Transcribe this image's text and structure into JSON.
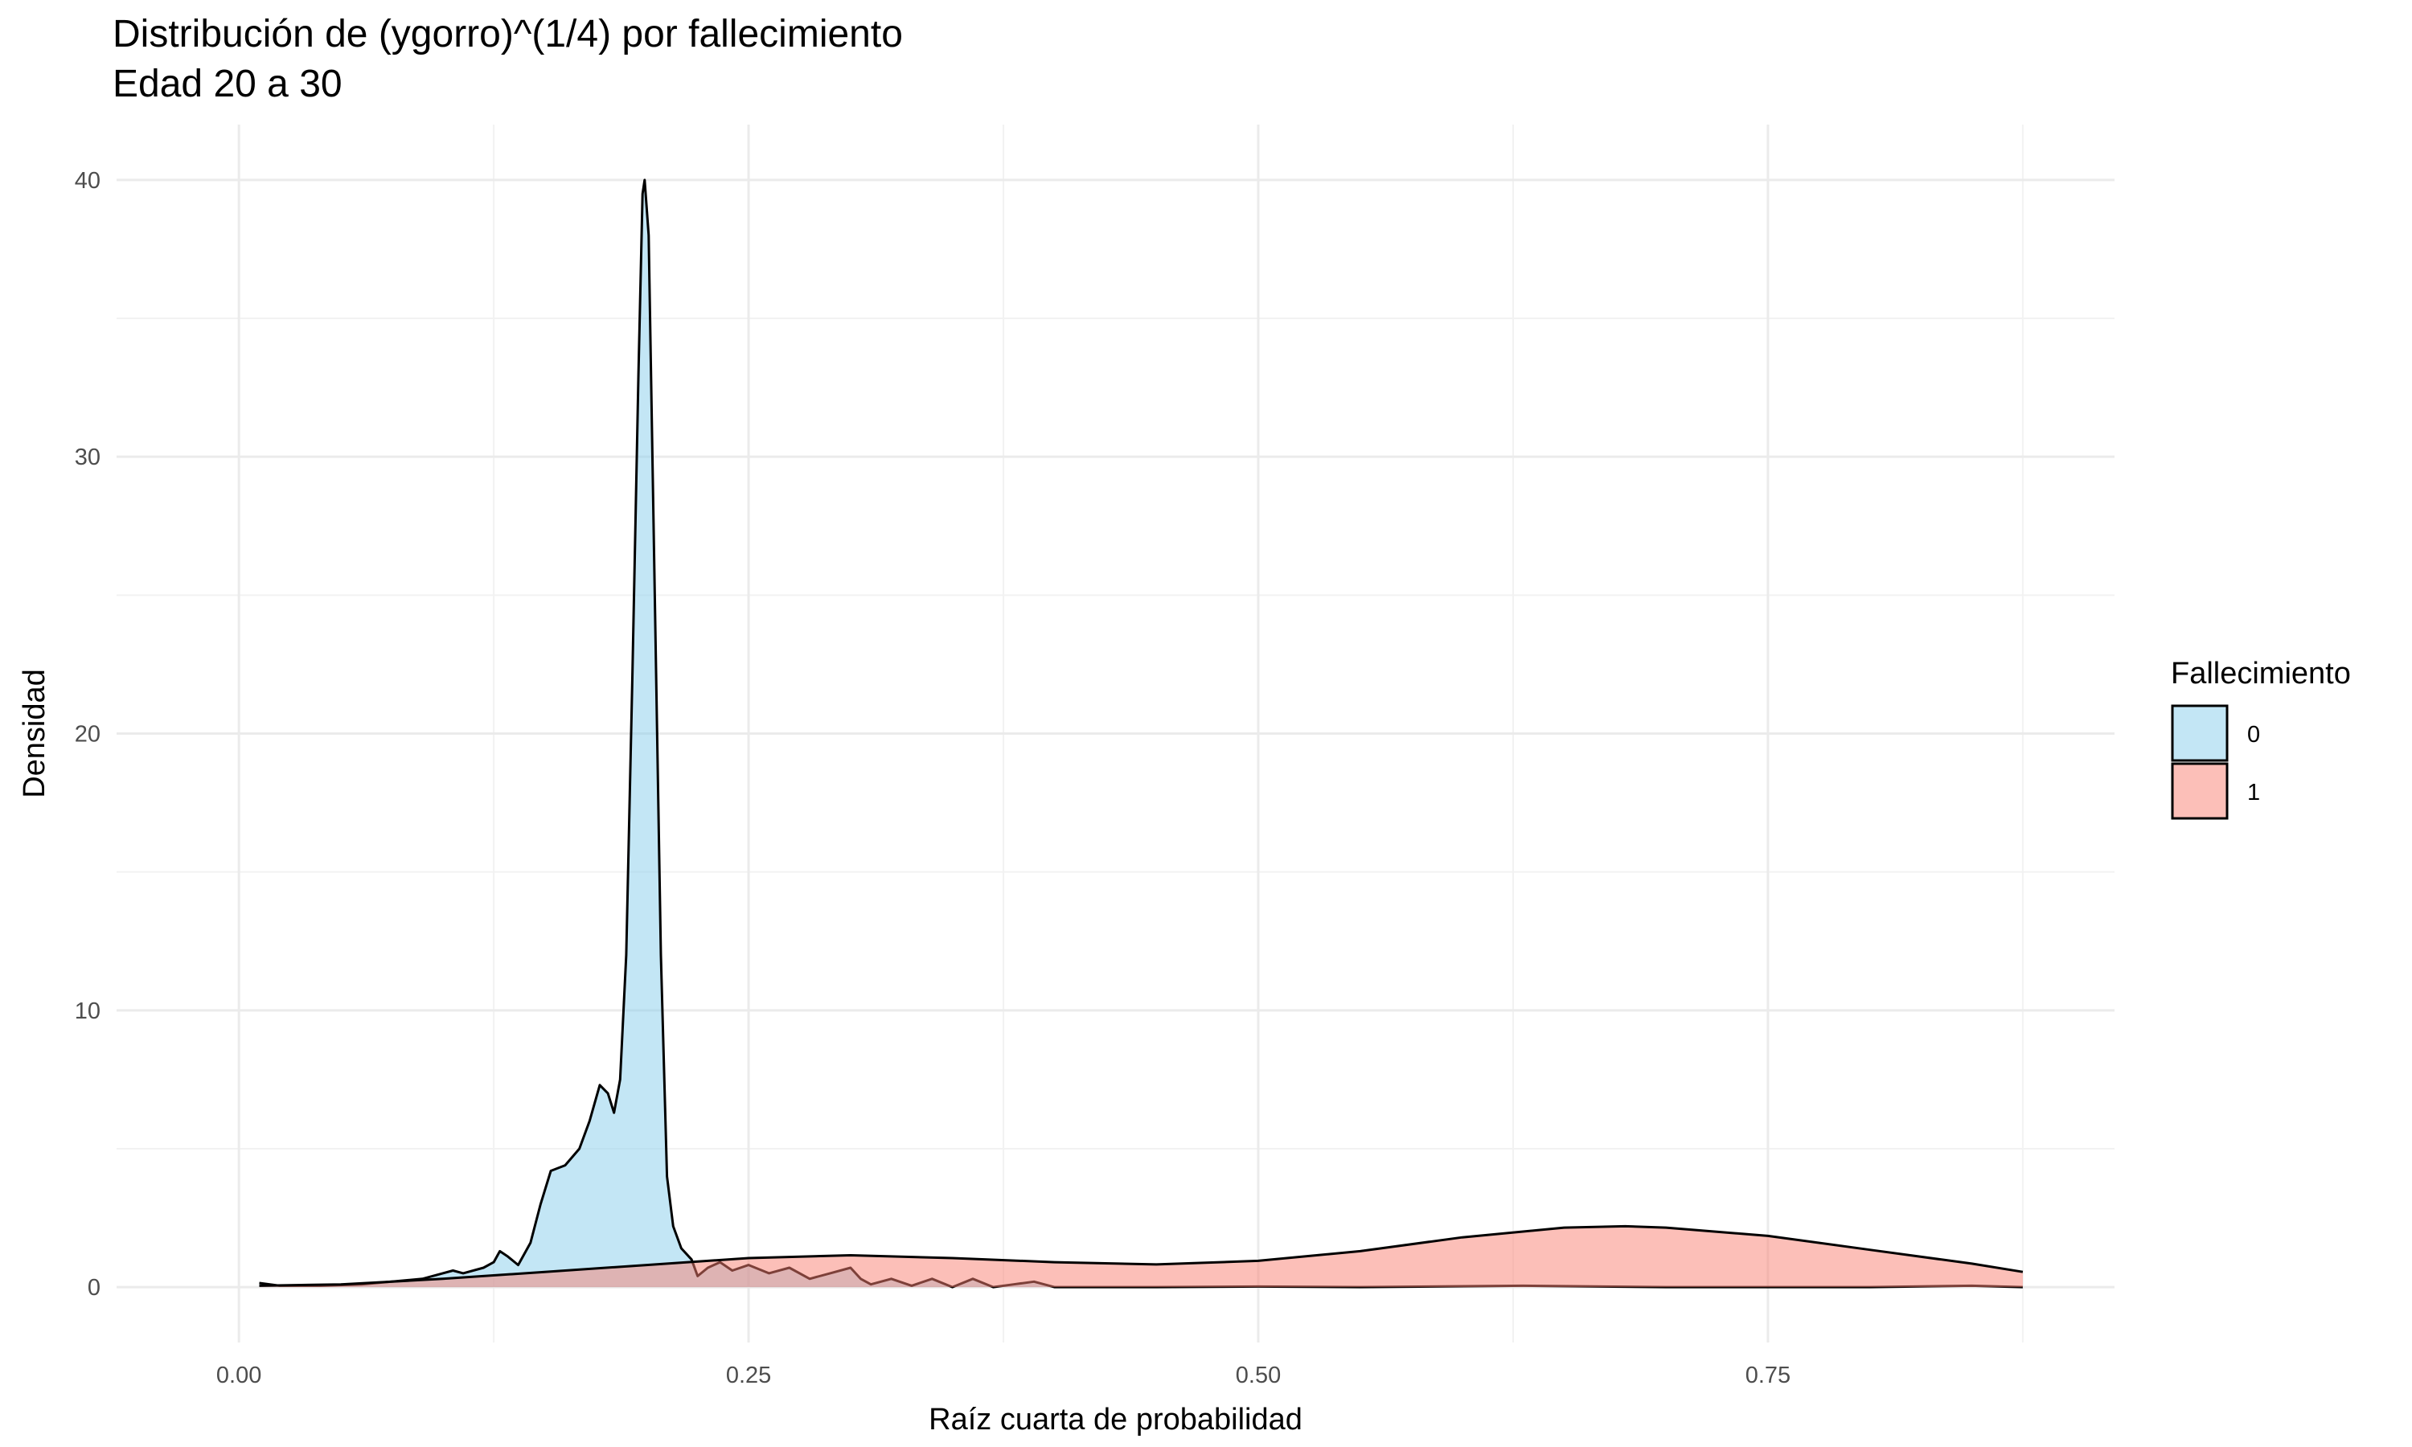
{
  "chart_data": {
    "type": "area",
    "title": "Distribución de (ygorro)^(1/4) por fallecimiento",
    "subtitle": "Edad 20 a 30",
    "xlabel": "Raíz cuarta de probabilidad",
    "ylabel": "Densidad",
    "xlim": [
      -0.06,
      0.92
    ],
    "ylim": [
      -2.0,
      42.0
    ],
    "x_ticks": [
      0.0,
      0.25,
      0.5,
      0.75
    ],
    "x_tick_labels": [
      "0.00",
      "0.25",
      "0.50",
      "0.75"
    ],
    "y_ticks": [
      0,
      10,
      20,
      30,
      40
    ],
    "y_tick_labels": [
      "0",
      "10",
      "20",
      "30",
      "40"
    ],
    "grid": true,
    "legend": {
      "title": "Fallecimiento",
      "placement": "right"
    },
    "series": [
      {
        "name": "0",
        "fill": "#87ceeb",
        "fill_opacity": 0.5,
        "points": [
          [
            0.01,
            0.15
          ],
          [
            0.02,
            0.05
          ],
          [
            0.04,
            0.05
          ],
          [
            0.06,
            0.1
          ],
          [
            0.075,
            0.2
          ],
          [
            0.09,
            0.3
          ],
          [
            0.1,
            0.5
          ],
          [
            0.105,
            0.6
          ],
          [
            0.11,
            0.5
          ],
          [
            0.12,
            0.7
          ],
          [
            0.125,
            0.9
          ],
          [
            0.128,
            1.3
          ],
          [
            0.132,
            1.1
          ],
          [
            0.137,
            0.8
          ],
          [
            0.143,
            1.6
          ],
          [
            0.148,
            3.0
          ],
          [
            0.153,
            4.2
          ],
          [
            0.16,
            4.4
          ],
          [
            0.167,
            5.0
          ],
          [
            0.172,
            6.0
          ],
          [
            0.177,
            7.3
          ],
          [
            0.181,
            7.0
          ],
          [
            0.184,
            6.3
          ],
          [
            0.187,
            7.5
          ],
          [
            0.19,
            12.0
          ],
          [
            0.193,
            22.0
          ],
          [
            0.196,
            33.0
          ],
          [
            0.198,
            39.5
          ],
          [
            0.199,
            40.0
          ],
          [
            0.201,
            38.0
          ],
          [
            0.204,
            25.0
          ],
          [
            0.207,
            12.0
          ],
          [
            0.21,
            4.0
          ],
          [
            0.213,
            2.2
          ],
          [
            0.217,
            1.4
          ],
          [
            0.222,
            1.0
          ],
          [
            0.225,
            0.4
          ],
          [
            0.23,
            0.7
          ],
          [
            0.236,
            0.9
          ],
          [
            0.242,
            0.6
          ],
          [
            0.25,
            0.8
          ],
          [
            0.26,
            0.5
          ],
          [
            0.27,
            0.7
          ],
          [
            0.28,
            0.3
          ],
          [
            0.29,
            0.5
          ],
          [
            0.3,
            0.7
          ],
          [
            0.305,
            0.3
          ],
          [
            0.31,
            0.1
          ],
          [
            0.32,
            0.3
          ],
          [
            0.33,
            0.05
          ],
          [
            0.34,
            0.3
          ],
          [
            0.35,
            0.0
          ],
          [
            0.36,
            0.3
          ],
          [
            0.37,
            0.0
          ],
          [
            0.38,
            0.1
          ],
          [
            0.39,
            0.2
          ],
          [
            0.4,
            0.0
          ],
          [
            0.45,
            0.0
          ],
          [
            0.5,
            0.02
          ],
          [
            0.55,
            0.0
          ],
          [
            0.63,
            0.05
          ],
          [
            0.7,
            0.0
          ],
          [
            0.8,
            0.0
          ],
          [
            0.85,
            0.05
          ],
          [
            0.875,
            0.0
          ]
        ]
      },
      {
        "name": "1",
        "fill": "#fa8072",
        "fill_opacity": 0.5,
        "points": [
          [
            0.01,
            0.05
          ],
          [
            0.05,
            0.1
          ],
          [
            0.1,
            0.3
          ],
          [
            0.15,
            0.55
          ],
          [
            0.2,
            0.8
          ],
          [
            0.25,
            1.05
          ],
          [
            0.3,
            1.15
          ],
          [
            0.35,
            1.05
          ],
          [
            0.4,
            0.9
          ],
          [
            0.45,
            0.82
          ],
          [
            0.5,
            0.95
          ],
          [
            0.55,
            1.3
          ],
          [
            0.6,
            1.8
          ],
          [
            0.65,
            2.15
          ],
          [
            0.68,
            2.2
          ],
          [
            0.7,
            2.15
          ],
          [
            0.75,
            1.85
          ],
          [
            0.8,
            1.35
          ],
          [
            0.85,
            0.85
          ],
          [
            0.875,
            0.55
          ]
        ]
      }
    ]
  }
}
